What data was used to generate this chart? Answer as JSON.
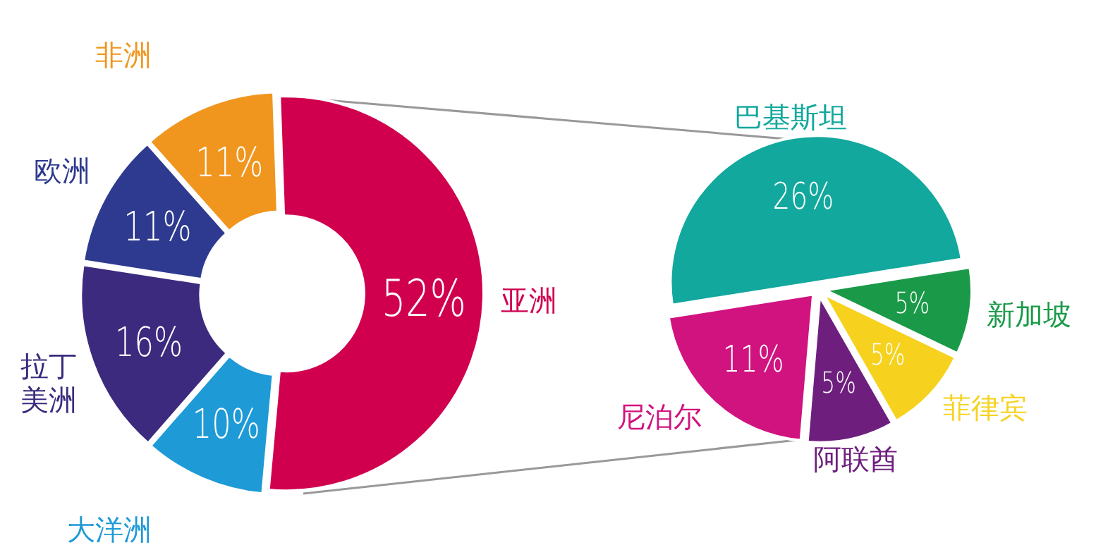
{
  "chart_data": [
    {
      "type": "donut",
      "categories": [
        "亚洲",
        "大洋洲",
        "拉丁美洲",
        "欧洲",
        "非洲"
      ],
      "values": [
        52,
        10,
        16,
        11,
        11
      ],
      "value_labels": [
        "52%",
        "10%",
        "16%",
        "11%",
        "11%"
      ],
      "colors": [
        "#d0004f",
        "#1e9ad6",
        "#3b2a7e",
        "#2e3a8f",
        "#f0961e"
      ]
    },
    {
      "type": "pie",
      "categories": [
        "巴基斯坦",
        "新加坡",
        "菲律宾",
        "阿联酋",
        "尼泊尔"
      ],
      "values": [
        26,
        5,
        5,
        5,
        11
      ],
      "value_labels": [
        "26%",
        "5%",
        "5%",
        "5%",
        "11%"
      ],
      "colors": [
        "#12a89d",
        "#1a9a48",
        "#f6d21f",
        "#6e1f7e",
        "#d0137f"
      ]
    }
  ]
}
